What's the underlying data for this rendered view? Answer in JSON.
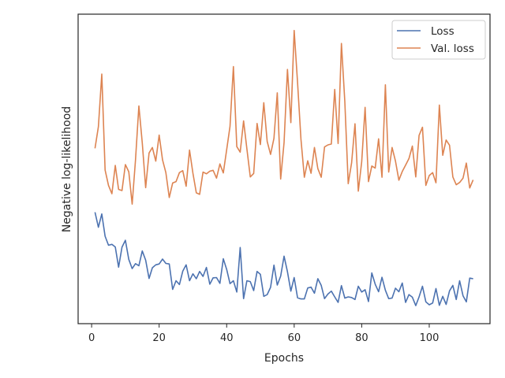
{
  "chart_data": {
    "type": "line",
    "xlabel": "Epochs",
    "ylabel": "Negative log-likelihood",
    "xlim": [
      -4,
      118
    ],
    "ylim": [
      0,
      1
    ],
    "x_ticks": [
      0,
      20,
      40,
      60,
      80,
      100
    ],
    "y_ticks_shown": false,
    "grid": false,
    "legend": "top-right",
    "series": [
      {
        "name": "Loss",
        "color": "#4c72b0",
        "x": [
          1,
          2,
          3,
          4,
          5,
          6,
          7,
          8,
          9,
          10,
          11,
          12,
          13,
          14,
          15,
          16,
          17,
          18,
          19,
          20,
          21,
          22,
          23,
          24,
          25,
          26,
          27,
          28,
          29,
          30,
          31,
          32,
          33,
          34,
          35,
          36,
          37,
          38,
          39,
          40,
          41,
          42,
          43,
          44,
          45,
          46,
          47,
          48,
          49,
          50,
          51,
          52,
          53,
          54,
          55,
          56,
          57,
          58,
          59,
          60,
          61,
          62,
          63,
          64,
          65,
          66,
          67,
          68,
          69,
          70,
          71,
          72,
          73,
          74,
          75,
          76,
          77,
          78,
          79,
          80,
          81,
          82,
          83,
          84,
          85,
          86,
          87,
          88,
          89,
          90,
          91,
          92,
          93,
          94,
          95,
          96,
          97,
          98,
          99,
          100,
          101,
          102,
          103,
          104,
          105,
          106,
          107,
          108,
          109,
          110,
          111,
          112,
          113
        ],
        "values": [
          0.361,
          0.309,
          0.355,
          0.278,
          0.247,
          0.25,
          0.241,
          0.171,
          0.24,
          0.264,
          0.198,
          0.166,
          0.183,
          0.176,
          0.227,
          0.195,
          0.132,
          0.169,
          0.179,
          0.182,
          0.199,
          0.184,
          0.182,
          0.094,
          0.124,
          0.111,
          0.157,
          0.179,
          0.124,
          0.148,
          0.131,
          0.156,
          0.139,
          0.17,
          0.112,
          0.134,
          0.135,
          0.115,
          0.2,
          0.163,
          0.114,
          0.124,
          0.085,
          0.239,
          0.062,
          0.124,
          0.121,
          0.09,
          0.156,
          0.146,
          0.07,
          0.076,
          0.101,
          0.178,
          0.109,
          0.14,
          0.209,
          0.155,
          0.088,
          0.135,
          0.065,
          0.061,
          0.061,
          0.099,
          0.102,
          0.081,
          0.131,
          0.108,
          0.062,
          0.078,
          0.088,
          0.068,
          0.049,
          0.107,
          0.064,
          0.068,
          0.066,
          0.059,
          0.105,
          0.085,
          0.093,
          0.052,
          0.151,
          0.112,
          0.086,
          0.136,
          0.091,
          0.062,
          0.064,
          0.098,
          0.086,
          0.116,
          0.049,
          0.076,
          0.067,
          0.038,
          0.068,
          0.105,
          0.051,
          0.041,
          0.047,
          0.097,
          0.039,
          0.07,
          0.042,
          0.089,
          0.108,
          0.059,
          0.124,
          0.072,
          0.051,
          0.133,
          0.131
        ]
      },
      {
        "name": "Val. loss",
        "color": "#dd8452",
        "x": [
          1,
          2,
          3,
          4,
          5,
          6,
          7,
          8,
          9,
          10,
          11,
          12,
          13,
          14,
          15,
          16,
          17,
          18,
          19,
          20,
          21,
          22,
          23,
          24,
          25,
          26,
          27,
          28,
          29,
          30,
          31,
          32,
          33,
          34,
          35,
          36,
          37,
          38,
          39,
          40,
          41,
          42,
          43,
          44,
          45,
          46,
          47,
          48,
          49,
          50,
          51,
          52,
          53,
          54,
          55,
          56,
          57,
          58,
          59,
          60,
          61,
          62,
          63,
          64,
          65,
          66,
          67,
          68,
          69,
          70,
          71,
          72,
          73,
          74,
          75,
          76,
          77,
          78,
          79,
          80,
          81,
          82,
          83,
          84,
          85,
          86,
          87,
          88,
          89,
          90,
          91,
          92,
          93,
          94,
          95,
          96,
          97,
          98,
          99,
          100,
          101,
          102,
          103,
          104,
          105,
          106,
          107,
          108,
          109,
          110,
          111,
          112,
          113
        ],
        "values": [
          0.582,
          0.657,
          0.839,
          0.507,
          0.454,
          0.425,
          0.523,
          0.44,
          0.436,
          0.526,
          0.501,
          0.389,
          0.541,
          0.729,
          0.601,
          0.446,
          0.566,
          0.585,
          0.538,
          0.628,
          0.542,
          0.498,
          0.412,
          0.462,
          0.467,
          0.498,
          0.505,
          0.451,
          0.576,
          0.496,
          0.428,
          0.423,
          0.5,
          0.494,
          0.503,
          0.506,
          0.479,
          0.528,
          0.497,
          0.578,
          0.658,
          0.865,
          0.588,
          0.569,
          0.677,
          0.58,
          0.483,
          0.495,
          0.668,
          0.595,
          0.74,
          0.606,
          0.561,
          0.617,
          0.774,
          0.476,
          0.602,
          0.855,
          0.671,
          0.99,
          0.81,
          0.614,
          0.482,
          0.539,
          0.496,
          0.585,
          0.512,
          0.482,
          0.587,
          0.594,
          0.597,
          0.786,
          0.599,
          0.945,
          0.744,
          0.46,
          0.532,
          0.667,
          0.434,
          0.536,
          0.724,
          0.467,
          0.521,
          0.514,
          0.615,
          0.482,
          0.802,
          0.5,
          0.585,
          0.538,
          0.472,
          0.502,
          0.524,
          0.547,
          0.59,
          0.483,
          0.627,
          0.655,
          0.454,
          0.488,
          0.498,
          0.463,
          0.732,
          0.558,
          0.611,
          0.593,
          0.483,
          0.456,
          0.464,
          0.479,
          0.531,
          0.445,
          0.473
        ]
      }
    ]
  }
}
